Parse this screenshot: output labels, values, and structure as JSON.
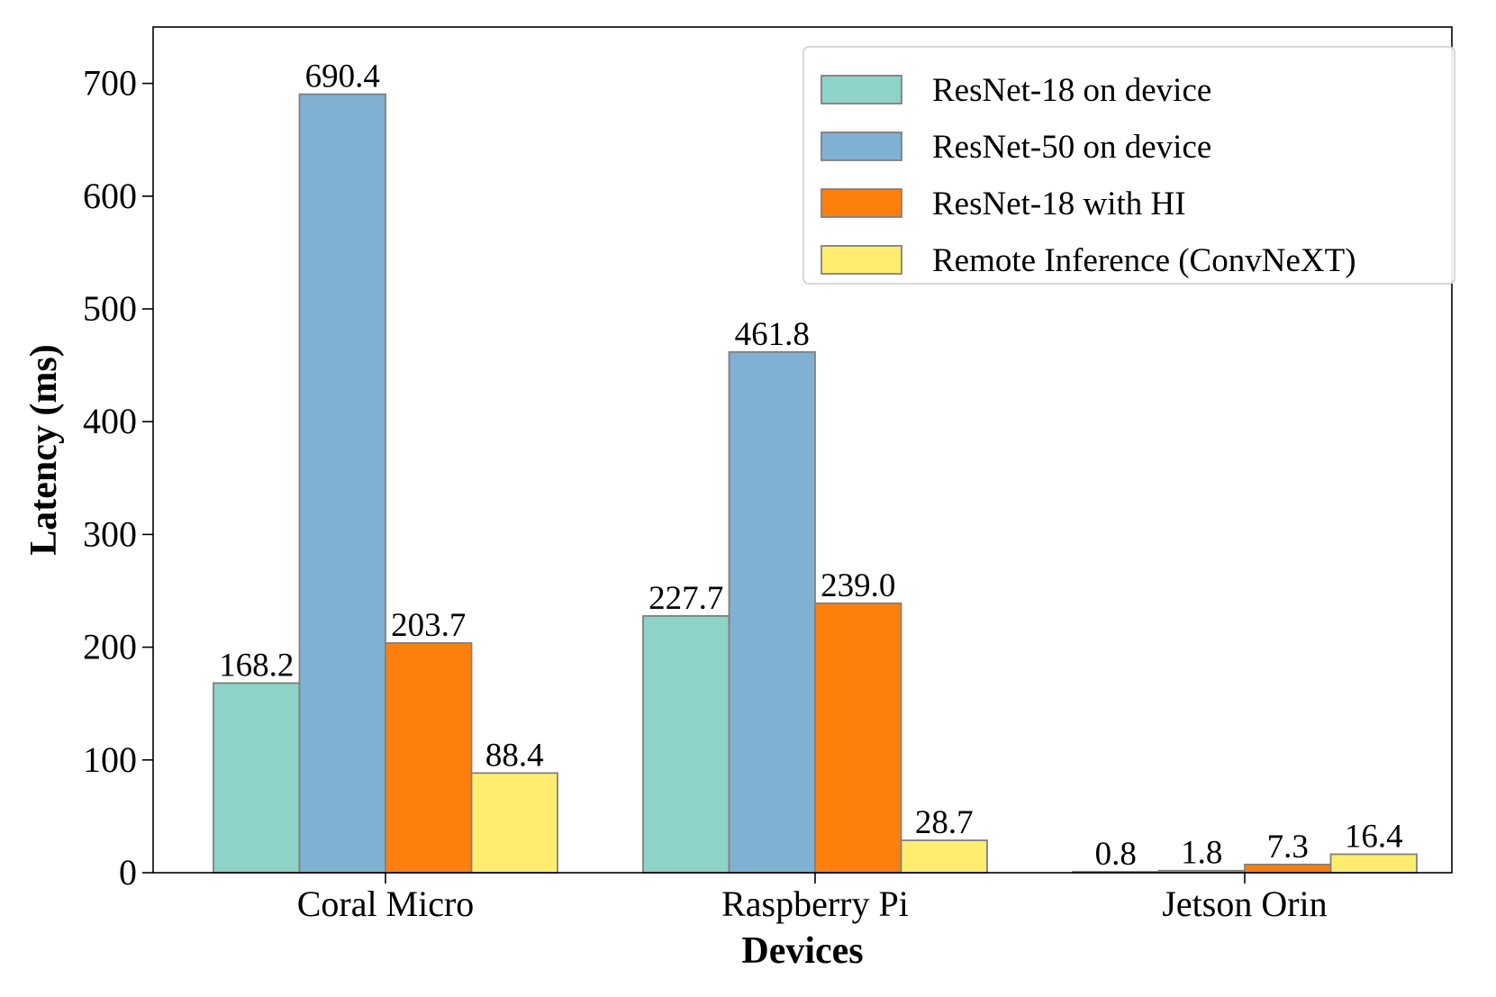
{
  "chart_data": {
    "type": "bar",
    "title": "",
    "xlabel": "Devices",
    "ylabel": "Latency (ms)",
    "categories": [
      "Coral Micro",
      "Raspberry Pi",
      "Jetson Orin"
    ],
    "ylim": [
      0,
      750
    ],
    "yticks": [
      0,
      100,
      200,
      300,
      400,
      500,
      600,
      700
    ],
    "grid": false,
    "legend_position": "top-right",
    "series": [
      {
        "name": "ResNet-18 on device",
        "color": "#8dd3c7",
        "values": [
          168.2,
          227.7,
          0.8
        ],
        "labels": [
          "168.2",
          "227.7",
          "0.8"
        ]
      },
      {
        "name": "ResNet-50 on device",
        "color": "#80b1d3",
        "values": [
          690.4,
          461.8,
          1.8
        ],
        "labels": [
          "690.4",
          "461.8",
          "1.8"
        ]
      },
      {
        "name": "ResNet-18 with HI",
        "color": "#ff7f0e",
        "values": [
          203.7,
          239.0,
          7.3
        ],
        "labels": [
          "203.7",
          "239.0",
          "7.3"
        ]
      },
      {
        "name": "Remote Inference (ConvNeXT)",
        "color": "#ffed6f",
        "values": [
          88.4,
          28.7,
          16.4
        ],
        "labels": [
          "88.4",
          "28.7",
          "16.4"
        ]
      }
    ]
  }
}
